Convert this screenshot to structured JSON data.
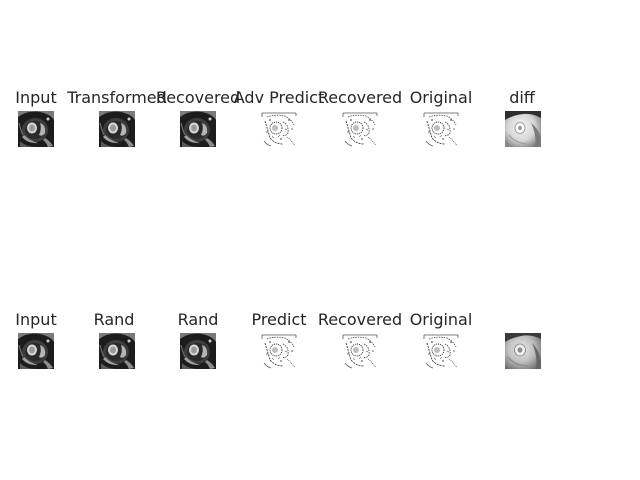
{
  "rows": [
    {
      "panels": [
        {
          "title": "Input",
          "kind": "mri"
        },
        {
          "title": "Transformed",
          "kind": "mri"
        },
        {
          "title": "Recovered",
          "kind": "mri"
        },
        {
          "title": "Adv Predict",
          "kind": "mask"
        },
        {
          "title": "Recovered",
          "kind": "mask"
        },
        {
          "title": "Original",
          "kind": "mask"
        },
        {
          "title": "diff",
          "kind": "diff"
        }
      ]
    },
    {
      "panels": [
        {
          "title": "Input",
          "kind": "mri"
        },
        {
          "title": "Rand",
          "kind": "mri"
        },
        {
          "title": "Rand",
          "kind": "mri"
        },
        {
          "title": "Predict",
          "kind": "mask"
        },
        {
          "title": "Recovered",
          "kind": "mask"
        },
        {
          "title": "Original",
          "kind": "mask"
        },
        {
          "title": "",
          "kind": "diff"
        }
      ]
    }
  ]
}
